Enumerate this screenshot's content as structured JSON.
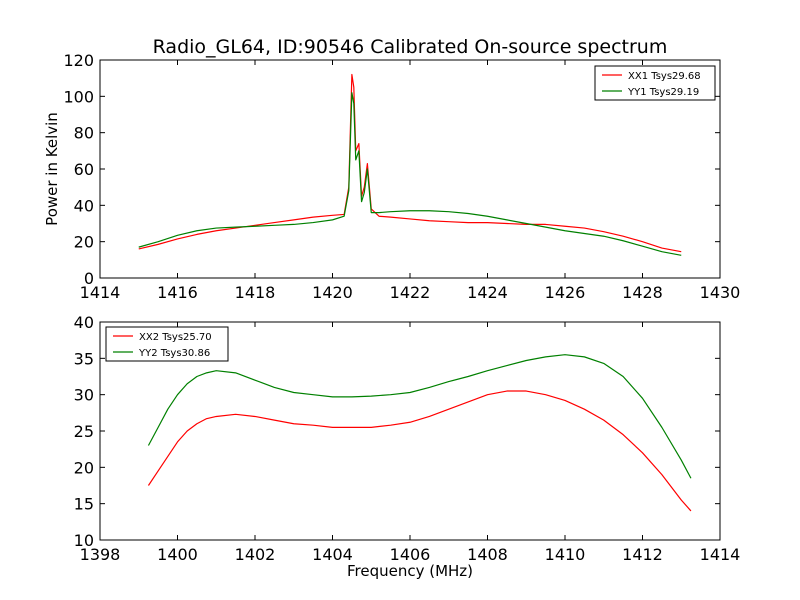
{
  "chart_data": [
    {
      "type": "line",
      "title": "Radio_GL64, ID:90546 Calibrated On-source spectrum",
      "xlabel": "",
      "ylabel": "Power in Kelvin",
      "xlim": [
        1414,
        1430
      ],
      "ylim": [
        0,
        120
      ],
      "xticks": [
        1414,
        1416,
        1418,
        1420,
        1422,
        1424,
        1426,
        1428,
        1430
      ],
      "yticks": [
        0,
        20,
        40,
        60,
        80,
        100,
        120
      ],
      "legend_position": "top-right",
      "grid": false,
      "series": [
        {
          "name": "XX1 Tsys29.68",
          "color": "#ff0000",
          "points": [
            [
              1415.0,
              16
            ],
            [
              1415.5,
              18.5
            ],
            [
              1416.0,
              21.5
            ],
            [
              1416.5,
              24
            ],
            [
              1417.0,
              26
            ],
            [
              1417.5,
              27.5
            ],
            [
              1418.0,
              29
            ],
            [
              1418.5,
              30.5
            ],
            [
              1419.0,
              32
            ],
            [
              1419.5,
              33.5
            ],
            [
              1420.0,
              34.5
            ],
            [
              1420.3,
              35
            ],
            [
              1420.42,
              50
            ],
            [
              1420.5,
              112
            ],
            [
              1420.55,
              105
            ],
            [
              1420.6,
              70
            ],
            [
              1420.68,
              74
            ],
            [
              1420.75,
              45
            ],
            [
              1420.82,
              50
            ],
            [
              1420.9,
              63
            ],
            [
              1421.0,
              38
            ],
            [
              1421.2,
              34
            ],
            [
              1421.5,
              33.5
            ],
            [
              1422.0,
              32.5
            ],
            [
              1422.5,
              31.5
            ],
            [
              1423.0,
              31
            ],
            [
              1423.5,
              30.5
            ],
            [
              1424.0,
              30.5
            ],
            [
              1424.5,
              30
            ],
            [
              1425.0,
              29.5
            ],
            [
              1425.5,
              29.5
            ],
            [
              1426.0,
              28.5
            ],
            [
              1426.5,
              27.5
            ],
            [
              1427.0,
              25.5
            ],
            [
              1427.5,
              23
            ],
            [
              1428.0,
              20
            ],
            [
              1428.5,
              16.5
            ],
            [
              1429.0,
              14.5
            ]
          ]
        },
        {
          "name": "YY1 Tsys29.19",
          "color": "#008000",
          "points": [
            [
              1415.0,
              17
            ],
            [
              1415.5,
              20
            ],
            [
              1416.0,
              23.5
            ],
            [
              1416.5,
              26
            ],
            [
              1417.0,
              27.5
            ],
            [
              1417.5,
              28
            ],
            [
              1418.0,
              28.5
            ],
            [
              1418.5,
              29
            ],
            [
              1419.0,
              29.5
            ],
            [
              1419.5,
              30.5
            ],
            [
              1420.0,
              32
            ],
            [
              1420.3,
              34
            ],
            [
              1420.42,
              48
            ],
            [
              1420.5,
              102
            ],
            [
              1420.55,
              96
            ],
            [
              1420.6,
              65
            ],
            [
              1420.68,
              70
            ],
            [
              1420.75,
              42
            ],
            [
              1420.82,
              47
            ],
            [
              1420.9,
              60
            ],
            [
              1421.0,
              36
            ],
            [
              1421.2,
              36
            ],
            [
              1421.5,
              36.5
            ],
            [
              1422.0,
              37
            ],
            [
              1422.5,
              37
            ],
            [
              1423.0,
              36.5
            ],
            [
              1423.5,
              35.5
            ],
            [
              1424.0,
              34
            ],
            [
              1424.5,
              32
            ],
            [
              1425.0,
              30
            ],
            [
              1425.5,
              28
            ],
            [
              1426.0,
              26
            ],
            [
              1426.5,
              24.5
            ],
            [
              1427.0,
              23
            ],
            [
              1427.5,
              20.5
            ],
            [
              1428.0,
              17.5
            ],
            [
              1428.5,
              14.5
            ],
            [
              1429.0,
              12.5
            ]
          ]
        }
      ]
    },
    {
      "type": "line",
      "title": "",
      "xlabel": "Frequency (MHz)",
      "ylabel": "",
      "xlim": [
        1398,
        1414
      ],
      "ylim": [
        10,
        40
      ],
      "xticks": [
        1398,
        1400,
        1402,
        1404,
        1406,
        1408,
        1410,
        1412,
        1414
      ],
      "yticks": [
        10,
        15,
        20,
        25,
        30,
        35,
        40
      ],
      "legend_position": "top-left",
      "grid": false,
      "series": [
        {
          "name": "XX2 Tsys25.70",
          "color": "#ff0000",
          "points": [
            [
              1399.25,
              17.5
            ],
            [
              1399.5,
              19.5
            ],
            [
              1399.75,
              21.5
            ],
            [
              1400.0,
              23.5
            ],
            [
              1400.25,
              25
            ],
            [
              1400.5,
              26
            ],
            [
              1400.75,
              26.7
            ],
            [
              1401.0,
              27
            ],
            [
              1401.5,
              27.3
            ],
            [
              1402.0,
              27
            ],
            [
              1402.5,
              26.5
            ],
            [
              1403.0,
              26
            ],
            [
              1403.5,
              25.8
            ],
            [
              1404.0,
              25.5
            ],
            [
              1404.5,
              25.5
            ],
            [
              1405.0,
              25.5
            ],
            [
              1405.5,
              25.8
            ],
            [
              1406.0,
              26.2
            ],
            [
              1406.5,
              27
            ],
            [
              1407.0,
              28
            ],
            [
              1407.5,
              29
            ],
            [
              1408.0,
              30
            ],
            [
              1408.5,
              30.5
            ],
            [
              1409.0,
              30.5
            ],
            [
              1409.5,
              30
            ],
            [
              1410.0,
              29.2
            ],
            [
              1410.5,
              28
            ],
            [
              1411.0,
              26.5
            ],
            [
              1411.5,
              24.5
            ],
            [
              1412.0,
              22
            ],
            [
              1412.5,
              19
            ],
            [
              1413.0,
              15.5
            ],
            [
              1413.25,
              14
            ]
          ]
        },
        {
          "name": "YY2 Tsys30.86",
          "color": "#008000",
          "points": [
            [
              1399.25,
              23
            ],
            [
              1399.5,
              25.5
            ],
            [
              1399.75,
              28
            ],
            [
              1400.0,
              30
            ],
            [
              1400.25,
              31.5
            ],
            [
              1400.5,
              32.5
            ],
            [
              1400.75,
              33
            ],
            [
              1401.0,
              33.3
            ],
            [
              1401.5,
              33
            ],
            [
              1402.0,
              32
            ],
            [
              1402.5,
              31
            ],
            [
              1403.0,
              30.3
            ],
            [
              1403.5,
              30
            ],
            [
              1404.0,
              29.7
            ],
            [
              1404.5,
              29.7
            ],
            [
              1405.0,
              29.8
            ],
            [
              1405.5,
              30
            ],
            [
              1406.0,
              30.3
            ],
            [
              1406.5,
              31
            ],
            [
              1407.0,
              31.8
            ],
            [
              1407.5,
              32.5
            ],
            [
              1408.0,
              33.3
            ],
            [
              1408.5,
              34
            ],
            [
              1409.0,
              34.7
            ],
            [
              1409.5,
              35.2
            ],
            [
              1410.0,
              35.5
            ],
            [
              1410.5,
              35.2
            ],
            [
              1411.0,
              34.3
            ],
            [
              1411.5,
              32.5
            ],
            [
              1412.0,
              29.5
            ],
            [
              1412.5,
              25.5
            ],
            [
              1413.0,
              21
            ],
            [
              1413.25,
              18.5
            ]
          ]
        }
      ]
    }
  ]
}
